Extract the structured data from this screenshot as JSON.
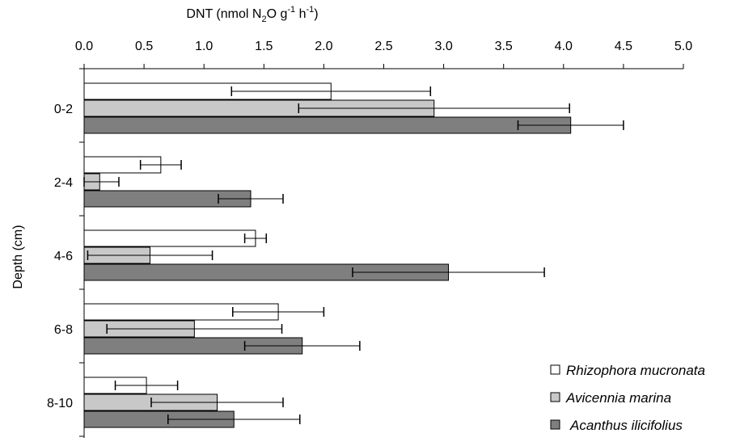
{
  "chart_data": {
    "type": "bar",
    "orientation": "horizontal",
    "title": "",
    "xlabel": {
      "prefix": "DNT (nmol N",
      "sub": "2",
      "mid": "O g",
      "sup1": "-1",
      "mid2": " h",
      "sup2": "-1",
      "suffix": ")"
    },
    "ylabel": "Depth (cm)",
    "x_axis_position": "top",
    "xlim": [
      0,
      5.0
    ],
    "x_ticks": [
      "0.0",
      "0.5",
      "1.0",
      "1.5",
      "2.0",
      "2.5",
      "3.0",
      "3.5",
      "4.0",
      "4.5",
      "5.0"
    ],
    "categories": [
      "0-2",
      "2-4",
      "4-6",
      "6-8",
      "8-10"
    ],
    "series": [
      {
        "name": "Rhizophora mucronata",
        "color": "#ffffff",
        "values": [
          2.06,
          0.64,
          1.43,
          1.62,
          0.52
        ],
        "errors": [
          0.83,
          0.17,
          0.09,
          0.38,
          0.26
        ]
      },
      {
        "name": "Avicennia marina",
        "color": "#c8c8c8",
        "values": [
          2.92,
          0.13,
          0.55,
          0.92,
          1.11
        ],
        "errors": [
          1.13,
          0.16,
          0.52,
          0.73,
          0.55
        ]
      },
      {
        "name": "Acanthus ilicifolius",
        "color": "#7f7f7f",
        "values": [
          4.06,
          1.39,
          3.04,
          1.82,
          1.25
        ],
        "errors": [
          0.44,
          0.27,
          0.8,
          0.48,
          0.55
        ]
      }
    ],
    "legend_position": "bottom-right",
    "grid": false
  }
}
